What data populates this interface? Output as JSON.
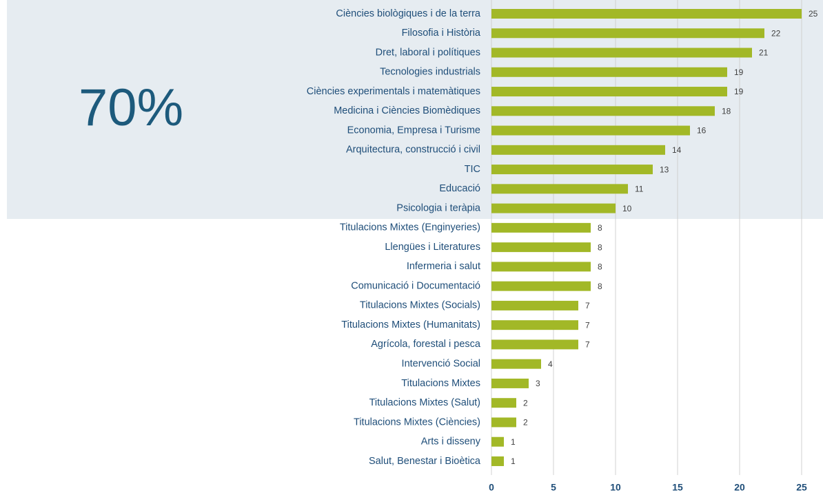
{
  "chart_data": {
    "type": "hbar",
    "annotation": "70%",
    "categories": [
      "Ciències biològiques i de la terra",
      "Filosofia i Història",
      "Dret, laboral i polítiques",
      "Tecnologies industrials",
      "Ciències experimentals i matemàtiques",
      "Medicina i Ciències Biomèdiques",
      "Economia, Empresa i Turisme",
      "Arquitectura, construcció i civil",
      "TIC",
      "Educació",
      "Psicologia i teràpia",
      "Titulacions Mixtes (Enginyeries)",
      "Llengües i Literatures",
      "Infermeria i salut",
      "Comunicació i Documentació",
      "Titulacions Mixtes (Socials)",
      "Titulacions Mixtes (Humanitats)",
      "Agrícola, forestal i pesca",
      "Intervenció Social",
      "Titulacions Mixtes",
      "Titulacions Mixtes (Salut)",
      "Titulacions Mixtes (Ciències)",
      "Arts i disseny",
      "Salut, Benestar i Bioètica"
    ],
    "values": [
      25,
      22,
      21,
      19,
      19,
      18,
      16,
      14,
      13,
      11,
      10,
      8,
      8,
      8,
      8,
      7,
      7,
      7,
      4,
      3,
      2,
      2,
      1,
      1
    ],
    "color": "#a2b827",
    "xlim": [
      0,
      25
    ],
    "xticks": [
      0,
      5,
      10,
      15,
      20,
      25
    ],
    "grid": true
  }
}
